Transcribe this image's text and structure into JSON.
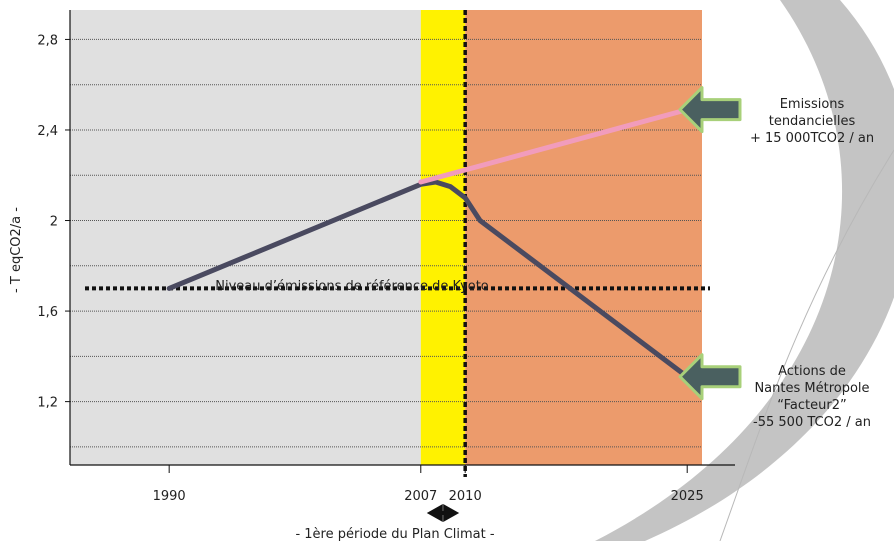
{
  "chart_data": {
    "type": "line",
    "ylabel": "- T eqCO2/a -",
    "x_ticks": [
      "1990",
      "2007",
      "2010",
      "2025"
    ],
    "y_ticks": [
      "1,2",
      "1,6",
      "2",
      "2,4",
      "2,8"
    ],
    "xlim": [
      1983.3,
      2026.0
    ],
    "ylim": [
      0.92,
      2.93
    ],
    "grid": "horizontal-dotted",
    "periods": [
      {
        "from": 1983.3,
        "to": 2007,
        "color": "#e0e0e0"
      },
      {
        "from": 2007,
        "to": 2010,
        "color": "#fff200"
      },
      {
        "from": 2010,
        "to": 2026.0,
        "color": "#ec9b6c"
      }
    ],
    "series": [
      {
        "color": "#4a4a60",
        "x": [
          1990,
          2007,
          2008,
          2009,
          2010,
          2011,
          2025
        ],
        "y": [
          1.7,
          2.16,
          2.17,
          2.15,
          2.1,
          2.0,
          1.31
        ]
      },
      {
        "color": "#f19cbc",
        "x": [
          2007,
          2025
        ],
        "y": [
          2.17,
          2.49
        ]
      }
    ],
    "reference_line": {
      "y": 1.7,
      "label": "Niveau d’émissions de référence de Kyoto"
    },
    "vertical_marker": {
      "x": 2010
    },
    "period_arrow": {
      "from": 2007,
      "to": 2010,
      "label": "- 1ère période du Plan Climat -"
    },
    "annotations": [
      {
        "lines": [
          "Emissions",
          "tendancielles",
          "+ 15 000TCO2 / an"
        ],
        "y": 2.49,
        "color": "#4a6060"
      },
      {
        "lines": [
          "Actions de",
          "Nantes Métropole",
          "“Facteur2”",
          "-55 500 TCO2 / an"
        ],
        "y": 1.31,
        "color": "#4a6060"
      }
    ]
  }
}
